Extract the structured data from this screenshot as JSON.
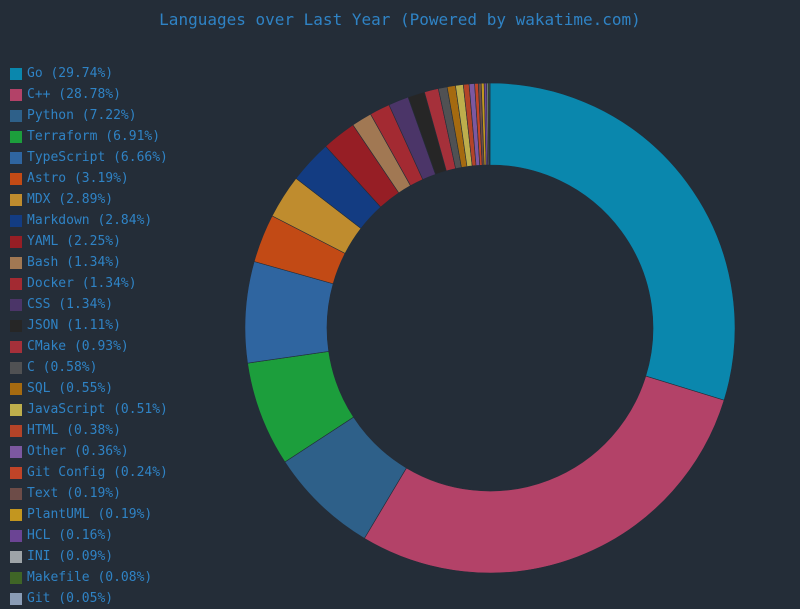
{
  "chart_data": {
    "type": "donut",
    "title": "Languages over Last Year (Powered by wakatime.com)",
    "legend_position": "left",
    "series": [
      {
        "label": "Go (29.74%)",
        "value": 29.74,
        "color": "#0a87ad"
      },
      {
        "label": "C++ (28.78%)",
        "value": 28.78,
        "color": "#b34268"
      },
      {
        "label": "Python (7.22%)",
        "value": 7.22,
        "color": "#2e6089"
      },
      {
        "label": "Terraform (6.91%)",
        "value": 6.91,
        "color": "#1c9e3c"
      },
      {
        "label": "TypeScript (6.66%)",
        "value": 6.66,
        "color": "#2f65a0"
      },
      {
        "label": "Astro (3.19%)",
        "value": 3.19,
        "color": "#c24a15"
      },
      {
        "label": "MDX (2.89%)",
        "value": 2.89,
        "color": "#bf8c2e"
      },
      {
        "label": "Markdown (2.84%)",
        "value": 2.84,
        "color": "#133c82"
      },
      {
        "label": "YAML (2.25%)",
        "value": 2.25,
        "color": "#961e25"
      },
      {
        "label": "Bash (1.34%)",
        "value": 1.34,
        "color": "#a17853"
      },
      {
        "label": "Docker (1.34%)",
        "value": 1.34,
        "color": "#a32a32"
      },
      {
        "label": "CSS (1.34%)",
        "value": 1.34,
        "color": "#4b3568"
      },
      {
        "label": "JSON (1.11%)",
        "value": 1.11,
        "color": "#262626"
      },
      {
        "label": "CMake (0.93%)",
        "value": 0.93,
        "color": "#a5303a"
      },
      {
        "label": "C (0.58%)",
        "value": 0.58,
        "color": "#505153"
      },
      {
        "label": "SQL (0.55%)",
        "value": 0.55,
        "color": "#a56a10"
      },
      {
        "label": "JavaScript (0.51%)",
        "value": 0.51,
        "color": "#bdae4c"
      },
      {
        "label": "HTML (0.38%)",
        "value": 0.38,
        "color": "#b34328"
      },
      {
        "label": "Other (0.36%)",
        "value": 0.36,
        "color": "#7c58a0"
      },
      {
        "label": "Git Config (0.24%)",
        "value": 0.24,
        "color": "#c04428"
      },
      {
        "label": "Text (0.19%)",
        "value": 0.19,
        "color": "#6d4c48"
      },
      {
        "label": "PlantUML (0.19%)",
        "value": 0.19,
        "color": "#c3961f"
      },
      {
        "label": "HCL (0.16%)",
        "value": 0.16,
        "color": "#6b4494"
      },
      {
        "label": "INI (0.09%)",
        "value": 0.09,
        "color": "#9ea4a8"
      },
      {
        "label": "Makefile (0.08%)",
        "value": 0.08,
        "color": "#3f6526"
      },
      {
        "label": "Git (0.05%)",
        "value": 0.05,
        "color": "#8a9cb5"
      }
    ]
  }
}
